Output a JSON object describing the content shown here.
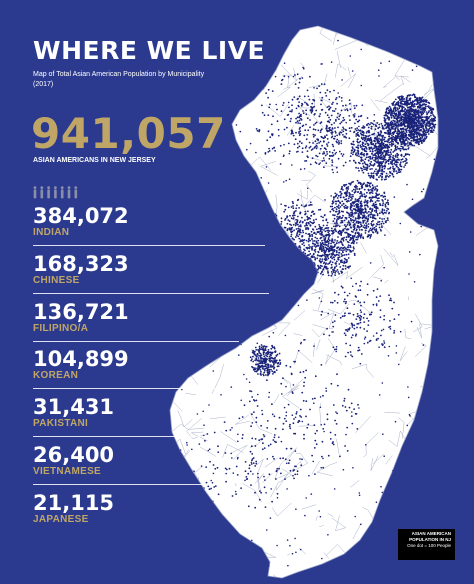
{
  "header": {
    "title": "WHERE WE LIVE",
    "subtitle": "Map of Total Asian American Population by Municipality (2017)"
  },
  "total": {
    "value": "941,057",
    "label": "ASIAN AMERICANS IN NEW JERSEY"
  },
  "groups": [
    {
      "value": "384,072",
      "label": "INDIAN"
    },
    {
      "value": "168,323",
      "label": "CHINESE"
    },
    {
      "value": "136,721",
      "label": "FILIPINO/A"
    },
    {
      "value": "104,899",
      "label": "KOREAN"
    },
    {
      "value": "31,431",
      "label": "PAKISTANI"
    },
    {
      "value": "26,400",
      "label": "VIETNAMESE"
    },
    {
      "value": "21,115",
      "label": "JAPANESE"
    }
  ],
  "legend": {
    "line1": "ASIAN AMERICAN",
    "line2": "POPULATION IN NJ",
    "line3": "One dot = 100 People"
  },
  "colors": {
    "background": "#2b3a8f",
    "gold": "#bfa667",
    "state_fill": "#ffffff",
    "dot": "#1a237a",
    "legend_bg": "#000000"
  },
  "icons": [
    "person-icon",
    "person-icon",
    "person-icon",
    "person-icon",
    "person-icon",
    "person-icon",
    "person-icon"
  ]
}
